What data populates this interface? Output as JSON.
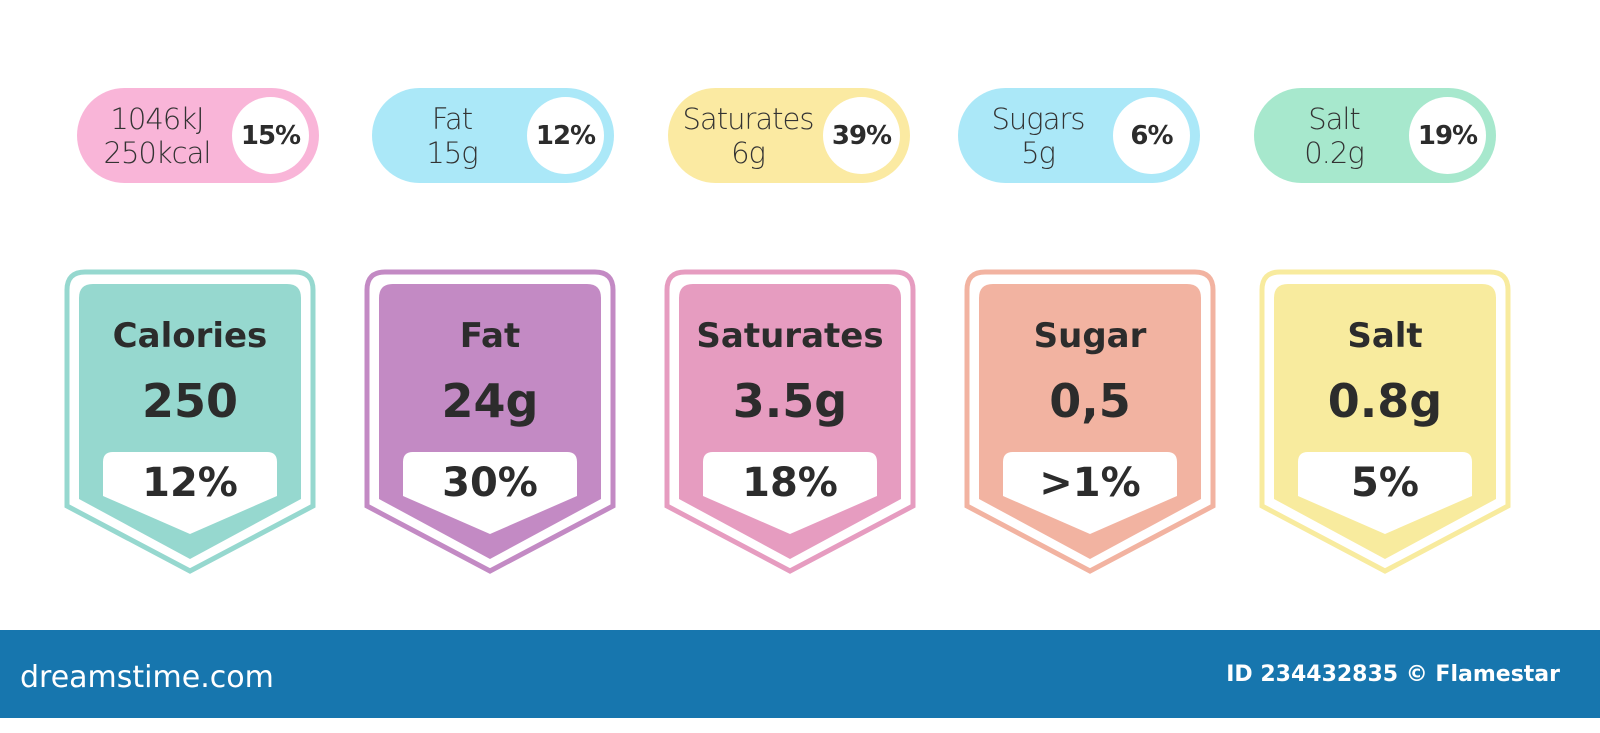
{
  "pills": [
    {
      "line1": "1046kJ",
      "line2": "250kcal",
      "percent": "15%",
      "color": "#f9b5d8"
    },
    {
      "line1": "Fat",
      "line2": "15g",
      "percent": "12%",
      "color": "#abe8f8"
    },
    {
      "line1": "Saturates",
      "line2": "6g",
      "percent": "39%",
      "color": "#fbeaa2"
    },
    {
      "line1": "Sugars",
      "line2": "5g",
      "percent": "6%",
      "color": "#abe8f8"
    },
    {
      "line1": "Salt",
      "line2": "0.2g",
      "percent": "19%",
      "color": "#a7e8cd"
    }
  ],
  "shields": [
    {
      "title": "Calories",
      "value": "250",
      "percent": "12%",
      "color": "#96d8cf"
    },
    {
      "title": "Fat",
      "value": "24g",
      "percent": "30%",
      "color": "#c38ac4"
    },
    {
      "title": "Saturates",
      "value": "3.5g",
      "percent": "18%",
      "color": "#e69cc0"
    },
    {
      "title": "Sugar",
      "value": "0,5",
      "percent": ">1%",
      "color": "#f2b3a1"
    },
    {
      "title": "Salt",
      "value": "0.8g",
      "percent": "5%",
      "color": "#f8eb9e"
    }
  ],
  "banner": {
    "logo": "dreamstime.com",
    "id": "ID 234432835 © Flamestar",
    "color": "#1776ae"
  }
}
